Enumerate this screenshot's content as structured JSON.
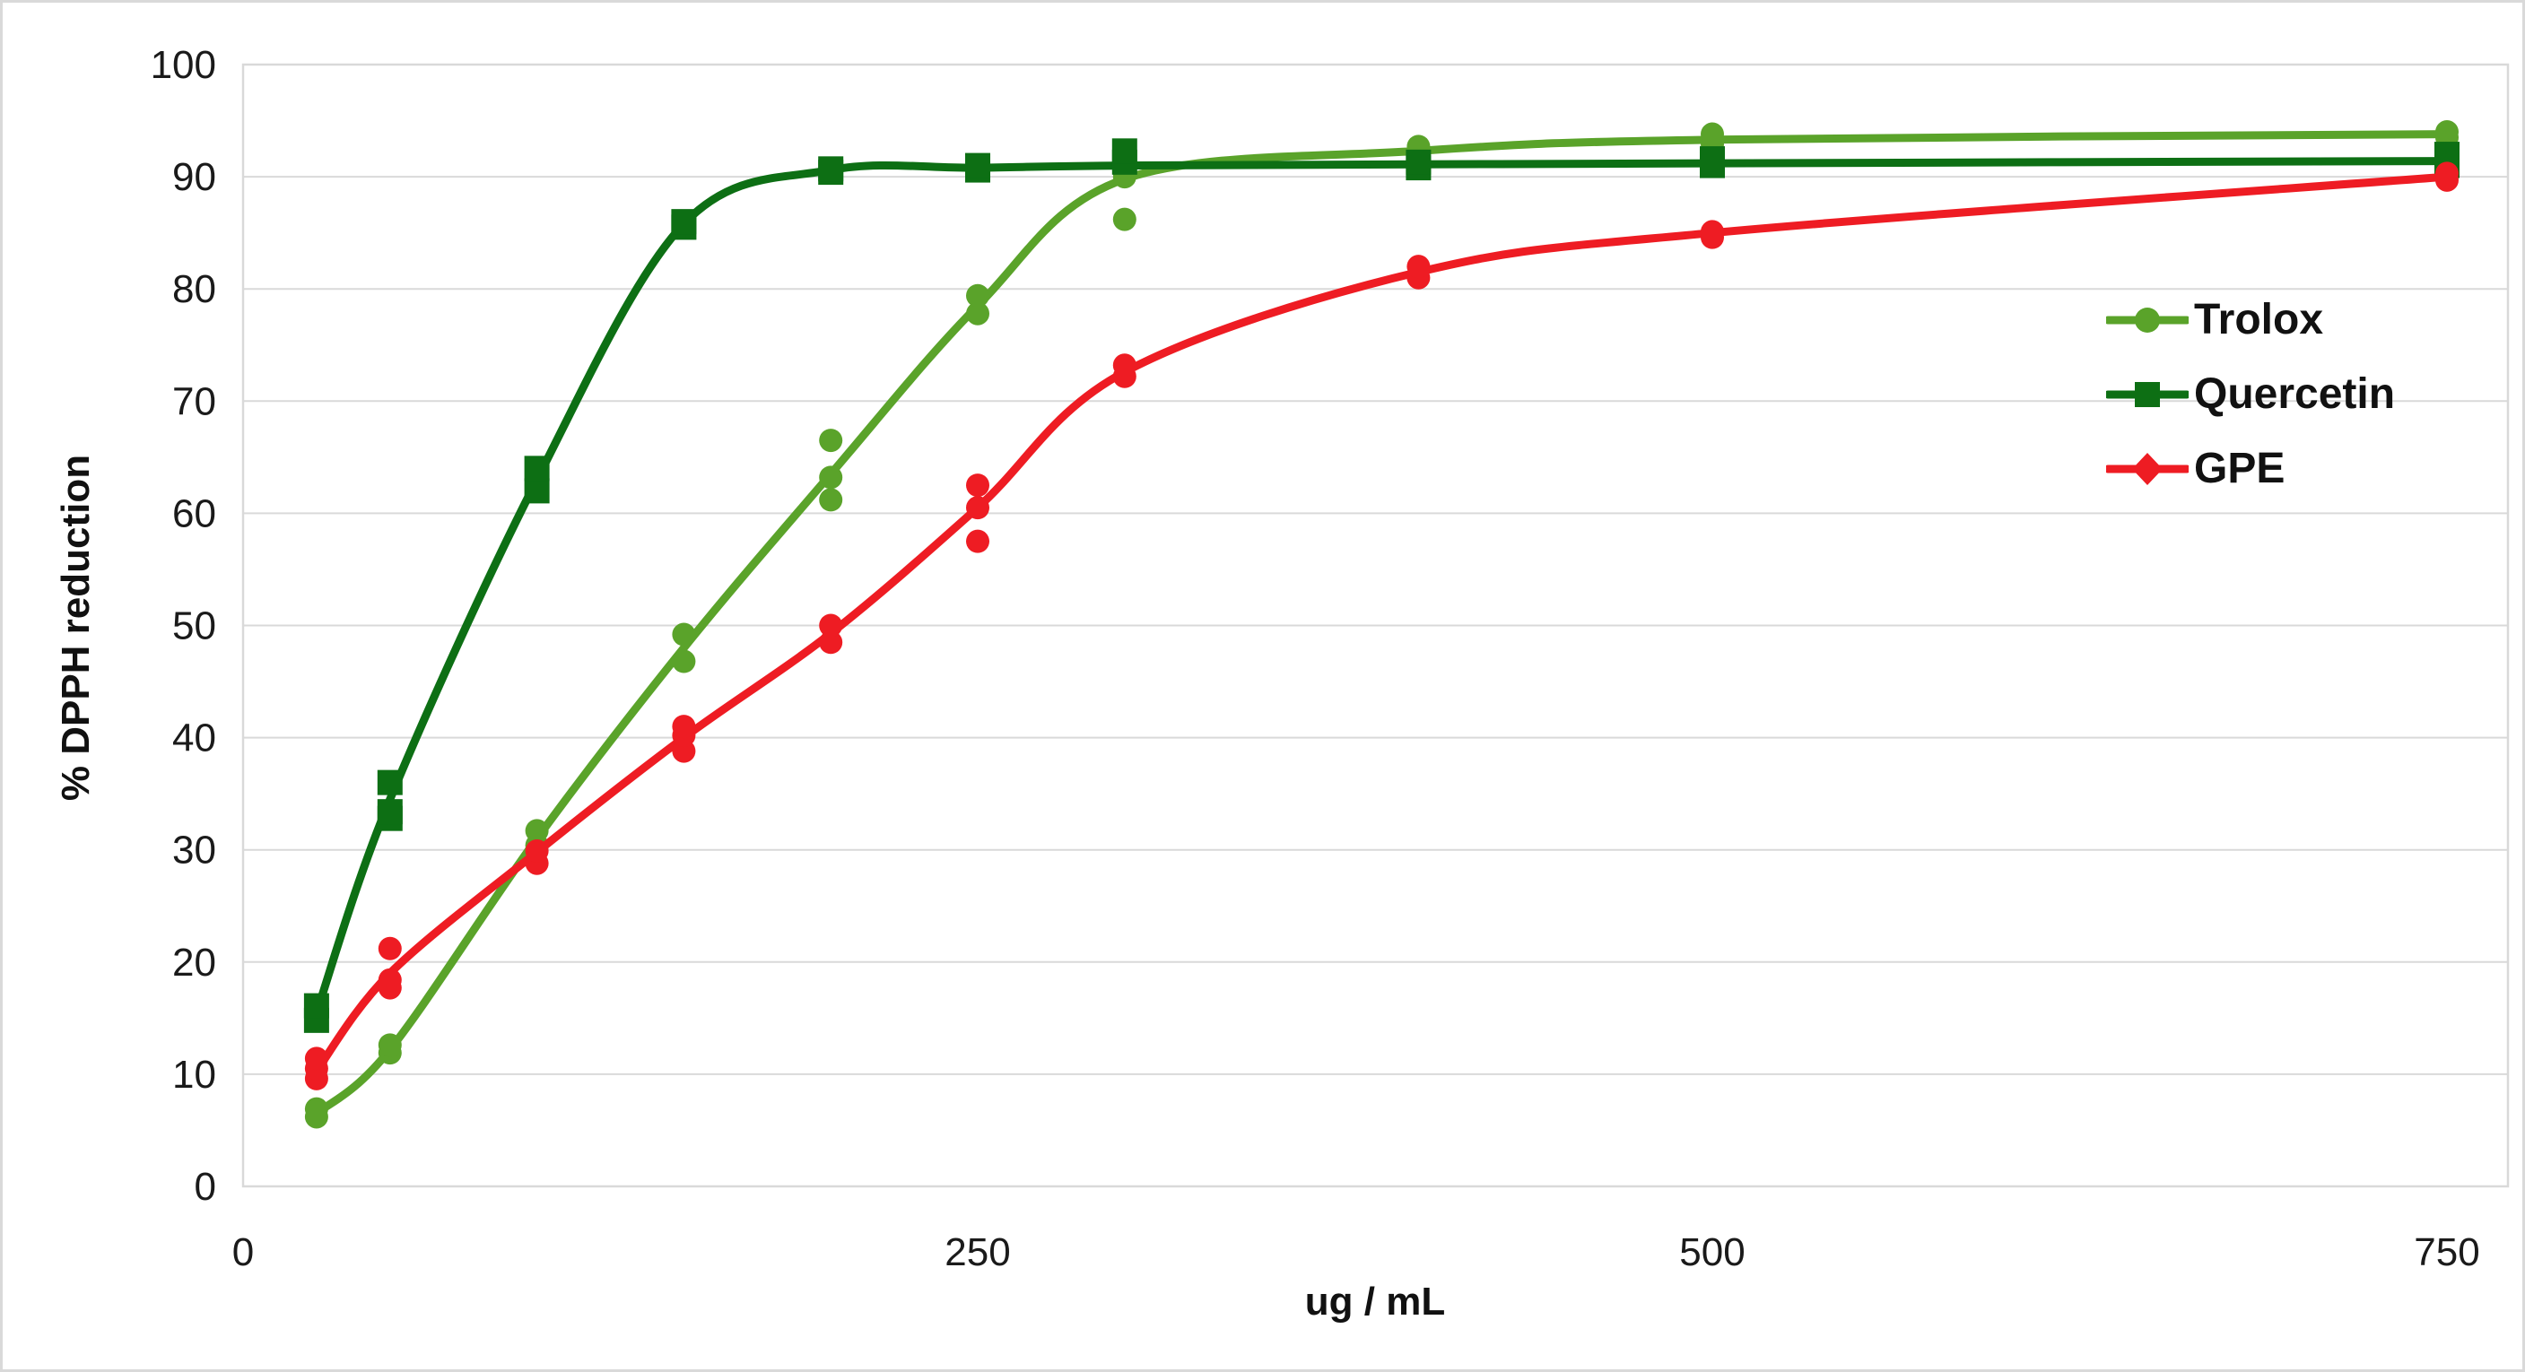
{
  "figure": {
    "background": "#ffffff",
    "border_color": "#d9d9d9",
    "gridline_color": "#d9d9d9",
    "tick_label_color": "#1a1a1a"
  },
  "chart_data": {
    "type": "scatter",
    "title": "",
    "xlabel": "ug / mL",
    "ylabel": "% DPPH reduction",
    "xlim": [
      0,
      770
    ],
    "ylim": [
      0,
      100
    ],
    "x_ticks": [
      0,
      250,
      500,
      750
    ],
    "y_ticks": [
      0,
      10,
      20,
      30,
      40,
      50,
      60,
      70,
      80,
      90,
      100
    ],
    "grid": "horizontal",
    "legend_position": "right-inside",
    "x_values": [
      25,
      50,
      100,
      150,
      200,
      250,
      300,
      400,
      500,
      750
    ],
    "series": [
      {
        "name": "Trolox",
        "color": "#5aa32a",
        "marker": "circle",
        "trend": [
          6.5,
          12.2,
          31.0,
          48.0,
          63.5,
          78.5,
          89.8,
          92.3,
          93.3,
          93.8
        ],
        "points": [
          [
            25,
            6.2
          ],
          [
            25,
            6.9
          ],
          [
            50,
            11.9
          ],
          [
            50,
            12.6
          ],
          [
            100,
            30.4
          ],
          [
            100,
            31.7
          ],
          [
            150,
            46.8
          ],
          [
            150,
            49.2
          ],
          [
            200,
            61.2
          ],
          [
            200,
            63.2
          ],
          [
            200,
            66.5
          ],
          [
            250,
            77.8
          ],
          [
            250,
            79.4
          ],
          [
            300,
            86.2
          ],
          [
            300,
            90.0
          ],
          [
            300,
            90.8
          ],
          [
            400,
            91.8
          ],
          [
            400,
            92.7
          ],
          [
            500,
            92.9
          ],
          [
            500,
            93.8
          ],
          [
            750,
            93.5
          ],
          [
            750,
            94.0
          ]
        ]
      },
      {
        "name": "Quercetin",
        "color": "#0d6f14",
        "marker": "square",
        "trend": [
          15.5,
          34.5,
          63.0,
          85.8,
          90.6,
          90.8,
          91.0,
          91.1,
          91.2,
          91.4
        ],
        "points": [
          [
            25,
            14.8
          ],
          [
            25,
            16.1
          ],
          [
            50,
            32.8
          ],
          [
            50,
            33.4
          ],
          [
            50,
            36.0
          ],
          [
            100,
            62.0
          ],
          [
            100,
            64.0
          ],
          [
            150,
            85.5
          ],
          [
            150,
            86.0
          ],
          [
            200,
            90.4
          ],
          [
            200,
            90.7
          ],
          [
            250,
            90.6
          ],
          [
            250,
            91.0
          ],
          [
            300,
            91.3
          ],
          [
            300,
            92.3
          ],
          [
            400,
            90.8
          ],
          [
            400,
            91.3
          ],
          [
            500,
            91.0
          ],
          [
            500,
            91.6
          ],
          [
            750,
            91.0
          ],
          [
            750,
            92.0
          ]
        ]
      },
      {
        "name": "GPE",
        "color": "#ee1c23",
        "marker": "diamond",
        "trend": [
          10.3,
          19.0,
          29.8,
          40.0,
          49.3,
          60.5,
          72.6,
          81.5,
          85.0,
          90.0
        ],
        "points": [
          [
            25,
            9.6
          ],
          [
            25,
            10.5
          ],
          [
            25,
            11.4
          ],
          [
            50,
            17.7
          ],
          [
            50,
            18.4
          ],
          [
            50,
            21.2
          ],
          [
            100,
            28.8
          ],
          [
            100,
            29.9
          ],
          [
            150,
            38.8
          ],
          [
            150,
            40.2
          ],
          [
            150,
            41.0
          ],
          [
            200,
            48.5
          ],
          [
            200,
            50.0
          ],
          [
            250,
            57.5
          ],
          [
            250,
            60.5
          ],
          [
            250,
            62.5
          ],
          [
            300,
            72.2
          ],
          [
            300,
            73.2
          ],
          [
            400,
            81.0
          ],
          [
            400,
            82.0
          ],
          [
            500,
            84.6
          ],
          [
            500,
            85.1
          ],
          [
            750,
            89.7
          ],
          [
            750,
            90.3
          ]
        ]
      }
    ]
  }
}
